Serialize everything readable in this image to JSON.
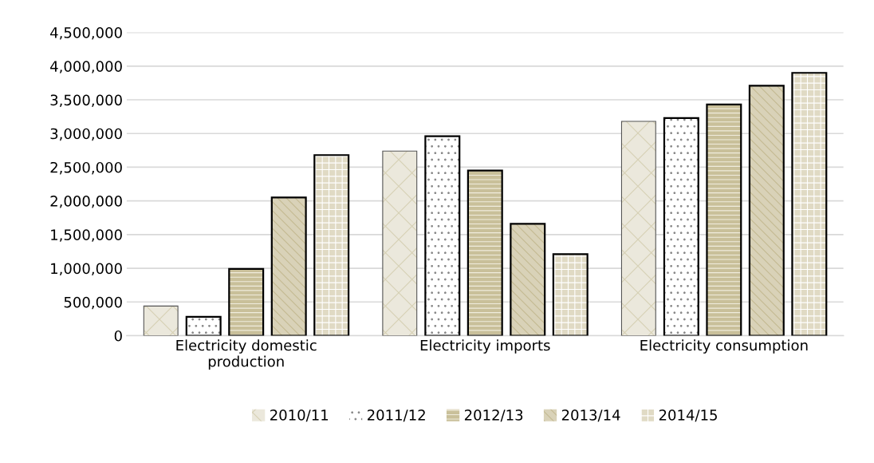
{
  "chart_data": {
    "type": "bar",
    "categories": [
      "Electricity domestic\nproduction",
      "Electricity imports",
      "Electricity consumption"
    ],
    "series": [
      {
        "name": "2010/11",
        "color": "#ebe8dc",
        "values": [
          440000,
          2740000,
          3180000
        ]
      },
      {
        "name": "2011/12",
        "color": "#ffffff",
        "values": [
          280000,
          2960000,
          3230000
        ]
      },
      {
        "name": "2012/13",
        "color": "#c9c09a",
        "values": [
          990000,
          2450000,
          3430000
        ]
      },
      {
        "name": "2013/14",
        "color": "#d9d2b8",
        "values": [
          2050000,
          1660000,
          3710000
        ]
      },
      {
        "name": "2014/15",
        "color": "#e0dac4",
        "values": [
          2680000,
          1210000,
          3900000
        ]
      }
    ],
    "ylim": [
      0,
      4500000
    ],
    "yticks": [
      {
        "value": 0,
        "label": "0"
      },
      {
        "value": 500000,
        "label": "500,000"
      },
      {
        "value": 1000000,
        "label": "1,000,000"
      },
      {
        "value": 1500000,
        "label": "1,500,000"
      },
      {
        "value": 2000000,
        "label": "2,000,000"
      },
      {
        "value": 2500000,
        "label": "2,500,000"
      },
      {
        "value": 3000000,
        "label": "3,000,000"
      },
      {
        "value": 3500000,
        "label": "3,500,000"
      },
      {
        "value": 4000000,
        "label": "4,000,000"
      },
      {
        "value": 4500000,
        "label": "4,500,000"
      }
    ],
    "grid": "y",
    "legend": "bottom"
  }
}
